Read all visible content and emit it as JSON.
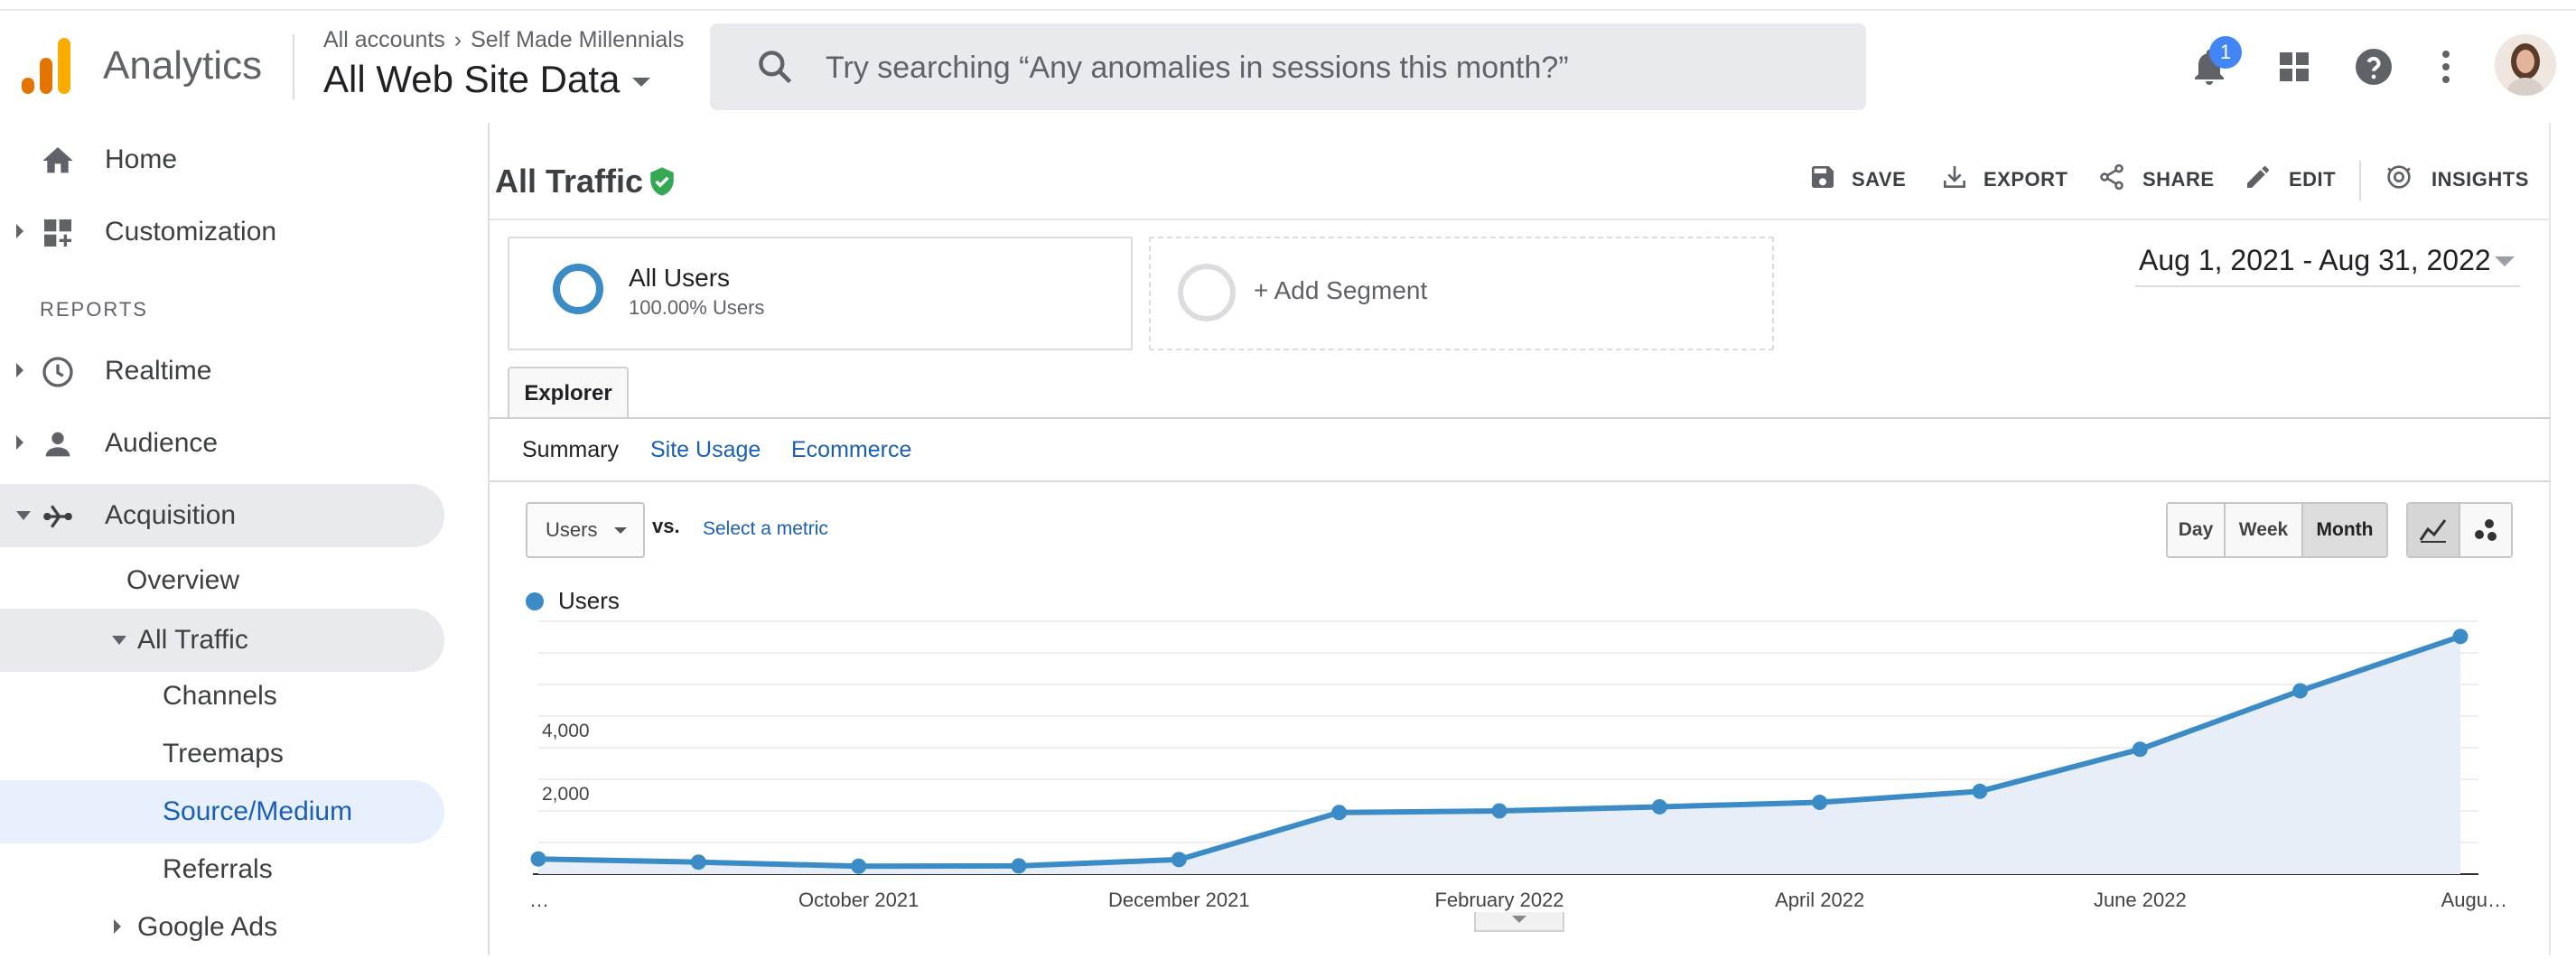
{
  "header": {
    "app_title": "Analytics",
    "breadcrumb_account": "All accounts",
    "breadcrumb_property": "Self Made Millennials",
    "property_view": "All Web Site Data",
    "search_placeholder": "Try searching “Any anomalies in sessions this month?”",
    "notification_count": "1",
    "icons": [
      "analytics-logo",
      "search-icon",
      "bell-icon",
      "apps-grid-icon",
      "help-icon",
      "more-vert-icon",
      "avatar"
    ]
  },
  "sidebar": {
    "home": "Home",
    "customization": "Customization",
    "reports_header": "REPORTS",
    "realtime": "Realtime",
    "audience": "Audience",
    "acquisition": "Acquisition",
    "overview": "Overview",
    "all_traffic": "All Traffic",
    "channels": "Channels",
    "treemaps": "Treemaps",
    "source_medium": "Source/Medium",
    "referrals": "Referrals",
    "google_ads": "Google Ads"
  },
  "report": {
    "title": "All Traffic",
    "actions": {
      "save": "SAVE",
      "export": "EXPORT",
      "share": "SHARE",
      "edit": "EDIT",
      "insights": "INSIGHTS"
    },
    "segment": {
      "name": "All Users",
      "sub": "100.00% Users"
    },
    "add_segment": "+ Add Segment",
    "date_range": "Aug 1, 2021 - Aug 31, 2022",
    "explorer_tab": "Explorer",
    "subtabs": {
      "summary": "Summary",
      "site_usage": "Site Usage",
      "ecommerce": "Ecommerce"
    },
    "metric": "Users",
    "vs": "vs.",
    "select_metric": "Select a metric",
    "granularity": {
      "day": "Day",
      "week": "Week",
      "month": "Month",
      "selected": "Month"
    }
  },
  "colors": {
    "accent": "#3b8bc7",
    "link": "#1a5fb4",
    "area": "#e8eef7"
  },
  "chart_data": {
    "type": "area",
    "series": [
      {
        "name": "Users",
        "values": [
          480,
          380,
          250,
          260,
          460,
          1950,
          2000,
          2130,
          2270,
          2620,
          3950,
          5800,
          7520
        ]
      }
    ],
    "x": [
      "Aug 2021",
      "Sep 2021",
      "Oct 2021",
      "Nov 2021",
      "Dec 2021",
      "Jan 2022",
      "Feb 2022",
      "Mar 2022",
      "Apr 2022",
      "May 2022",
      "Jun 2022",
      "Jul 2022",
      "Aug 2022"
    ],
    "x_tick_labels": [
      {
        "index": 0,
        "label": "…"
      },
      {
        "index": 2,
        "label": "October 2021"
      },
      {
        "index": 4,
        "label": "December 2021"
      },
      {
        "index": 6,
        "label": "February 2022"
      },
      {
        "index": 8,
        "label": "April 2022"
      },
      {
        "index": 10,
        "label": "June 2022"
      },
      {
        "index": 12,
        "label": "Augu…"
      }
    ],
    "y_ticks": [
      {
        "value": 4000,
        "label": "4,000"
      },
      {
        "value": 2000,
        "label": "2,000"
      }
    ],
    "ylim": [
      0,
      8000
    ],
    "legend": "top-left",
    "grid": true
  }
}
